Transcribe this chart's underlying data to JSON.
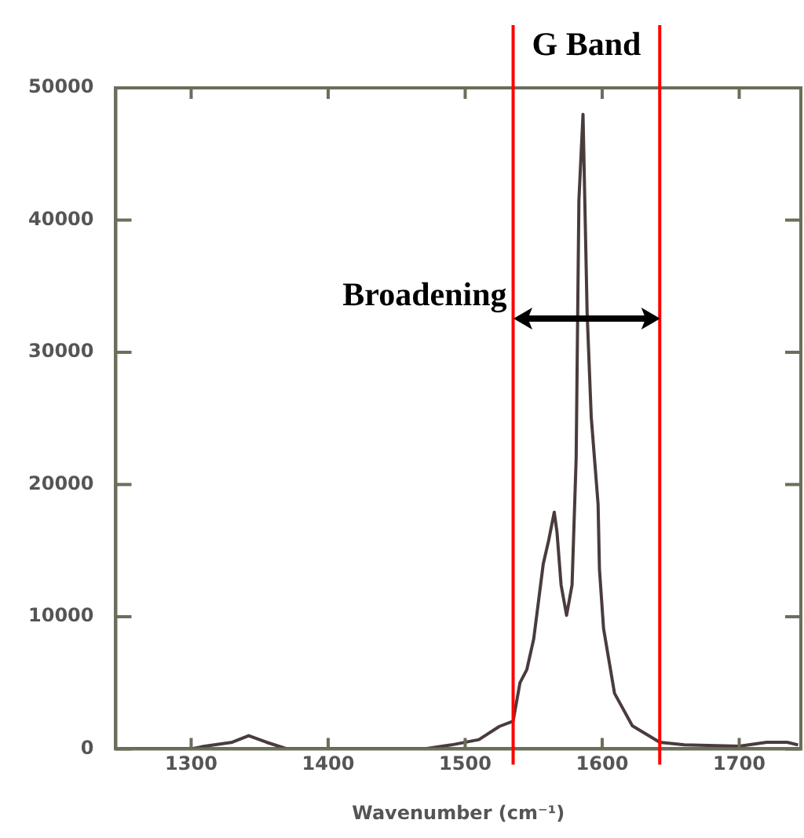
{
  "chart_data": {
    "type": "line",
    "xlabel": "Wavenumber (cm⁻¹)",
    "xlim": [
      1245,
      1745
    ],
    "xticks": [
      1300,
      1400,
      1500,
      1600,
      1700
    ],
    "ylim": [
      0,
      50000
    ],
    "yticks": [
      0,
      10000,
      20000,
      30000,
      40000,
      50000
    ],
    "grid": false,
    "legend": false,
    "marker": "none",
    "line_style": "solid",
    "series": [
      {
        "color": "#4a3c3c",
        "x": [
          1248,
          1300,
          1310,
          1330,
          1342,
          1355,
          1370,
          1400,
          1470,
          1490,
          1510,
          1525,
          1535,
          1540,
          1545,
          1550,
          1557,
          1561,
          1565,
          1567,
          1570,
          1574,
          1578,
          1581,
          1583,
          1586,
          1589,
          1592,
          1597,
          1598,
          1601,
          1609,
          1622,
          1642,
          1660,
          1700,
          1720,
          1735,
          1743
        ],
        "values": [
          0,
          0,
          200,
          500,
          1000,
          500,
          0,
          0,
          0,
          300,
          700,
          1700,
          2100,
          5000,
          6000,
          8300,
          14000,
          15800,
          17900,
          16400,
          12400,
          10100,
          12400,
          22000,
          41500,
          48000,
          33000,
          25100,
          18500,
          13600,
          9100,
          4200,
          1750,
          500,
          300,
          200,
          500,
          500,
          300
        ]
      }
    ],
    "ref_lines": [
      {
        "axis": "x",
        "value": 1535,
        "color": "#ff0000"
      },
      {
        "axis": "x",
        "value": 1642,
        "color": "#ff0000"
      }
    ],
    "annotations": [
      "G Band",
      {
        "text": "Broadening",
        "x": 1535,
        "y": 32500
      }
    ]
  }
}
